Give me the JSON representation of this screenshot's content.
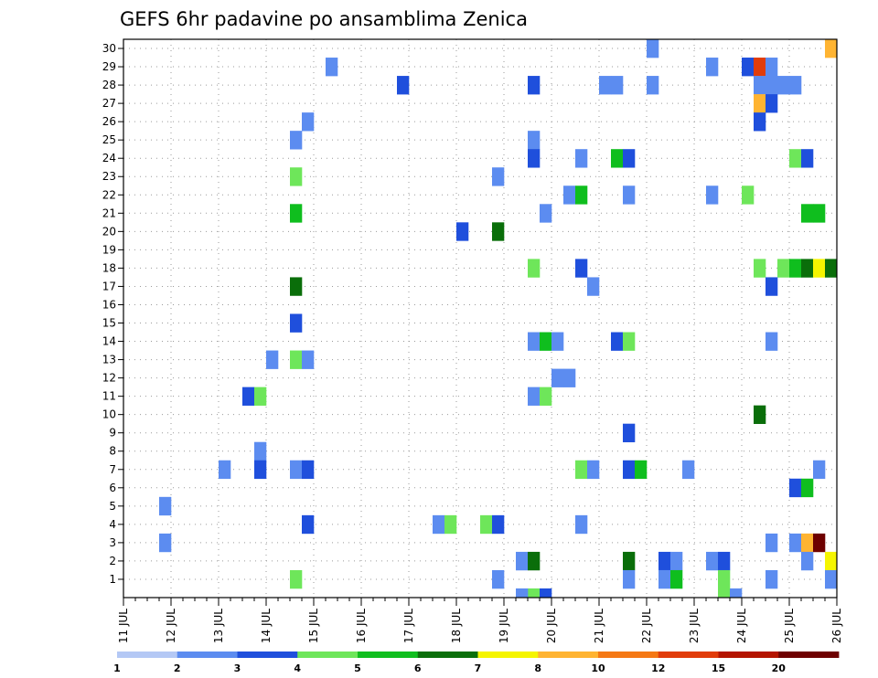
{
  "chart_data": {
    "type": "heatmap",
    "title": "GEFS 6hr padavine po ansamblima Zenica",
    "xlabel": "",
    "ylabel": "",
    "x_ticks": [
      "11 JUL",
      "12 JUL",
      "13 JUL",
      "14 JUL",
      "15 JUL",
      "16 JUL",
      "17 JUL",
      "18 JUL",
      "19 JUL",
      "20 JUL",
      "21 JUL",
      "22 JUL",
      "23 JUL",
      "24 JUL",
      "25 JUL",
      "26 JUL"
    ],
    "y_ticks": [
      "1",
      "2",
      "3",
      "4",
      "5",
      "6",
      "7",
      "8",
      "9",
      "10",
      "11",
      "12",
      "13",
      "14",
      "15",
      "16",
      "17",
      "18",
      "19",
      "20",
      "21",
      "22",
      "23",
      "24",
      "25",
      "26",
      "27",
      "28",
      "29",
      "30"
    ],
    "x_unit": "6-hour steps after 11 JUL 00Z",
    "xlim": [
      0,
      60
    ],
    "ylim": [
      0,
      30
    ],
    "grid": true,
    "legend": {
      "placement": "bottom",
      "labels": [
        "1",
        "2",
        "3",
        "4",
        "5",
        "6",
        "7",
        "8",
        "10",
        "12",
        "15",
        "20"
      ],
      "colors": [
        "#b4c8f5",
        "#5c8cf0",
        "#1f4fdc",
        "#6ee65a",
        "#0fbe1e",
        "#0a6e0a",
        "#f5f500",
        "#ffb432",
        "#f57814",
        "#e13c0a",
        "#b41400",
        "#6e0000"
      ]
    },
    "cells": [
      [
        44,
        30,
        1
      ],
      [
        59,
        30,
        7
      ],
      [
        17,
        29,
        1
      ],
      [
        49,
        29,
        1
      ],
      [
        52,
        29,
        2
      ],
      [
        53,
        29,
        9
      ],
      [
        54,
        29,
        1
      ],
      [
        23,
        28,
        2
      ],
      [
        34,
        28,
        2
      ],
      [
        44,
        28,
        1
      ],
      [
        54,
        28,
        1
      ],
      [
        53,
        28,
        1
      ],
      [
        40,
        28,
        1
      ],
      [
        41,
        28,
        1
      ],
      [
        54,
        28,
        1
      ],
      [
        55,
        28,
        1
      ],
      [
        56,
        28,
        1
      ],
      [
        53,
        27,
        7
      ],
      [
        54,
        27,
        2
      ],
      [
        15,
        26,
        1
      ],
      [
        53,
        26,
        2
      ],
      [
        14,
        25,
        1
      ],
      [
        34,
        25,
        1
      ],
      [
        34,
        24,
        2
      ],
      [
        38,
        24,
        1
      ],
      [
        41,
        24,
        4
      ],
      [
        42,
        24,
        2
      ],
      [
        56,
        24,
        3
      ],
      [
        57,
        24,
        2
      ],
      [
        14,
        23,
        3
      ],
      [
        31,
        23,
        1
      ],
      [
        37,
        22,
        1
      ],
      [
        38,
        22,
        4
      ],
      [
        42,
        22,
        1
      ],
      [
        49,
        22,
        1
      ],
      [
        52,
        22,
        3
      ],
      [
        14,
        21,
        4
      ],
      [
        35,
        21,
        1
      ],
      [
        57,
        21,
        4
      ],
      [
        58,
        21,
        4
      ],
      [
        28,
        20,
        2
      ],
      [
        31,
        20,
        5
      ],
      [
        34,
        18,
        3
      ],
      [
        38,
        18,
        2
      ],
      [
        53,
        18,
        3
      ],
      [
        55,
        18,
        3
      ],
      [
        56,
        18,
        4
      ],
      [
        57,
        18,
        5
      ],
      [
        58,
        18,
        6
      ],
      [
        59,
        18,
        5
      ],
      [
        60,
        18,
        10
      ],
      [
        61,
        18,
        3
      ],
      [
        62,
        18,
        5
      ],
      [
        63,
        18,
        2
      ],
      [
        14,
        17,
        5
      ],
      [
        39,
        17,
        1
      ],
      [
        54,
        17,
        2
      ],
      [
        14,
        15,
        2
      ],
      [
        34,
        14,
        1
      ],
      [
        35,
        14,
        4
      ],
      [
        36,
        14,
        1
      ],
      [
        41,
        14,
        2
      ],
      [
        42,
        14,
        3
      ],
      [
        54,
        14,
        1
      ],
      [
        12,
        13,
        1
      ],
      [
        14,
        13,
        3
      ],
      [
        15,
        13,
        1
      ],
      [
        36,
        12,
        1
      ],
      [
        37,
        12,
        1
      ],
      [
        10,
        11,
        2
      ],
      [
        11,
        11,
        3
      ],
      [
        34,
        11,
        1
      ],
      [
        35,
        11,
        3
      ],
      [
        53,
        10,
        5
      ],
      [
        42,
        9,
        2
      ],
      [
        11,
        8,
        1
      ],
      [
        8,
        7,
        1
      ],
      [
        11,
        7,
        2
      ],
      [
        14,
        7,
        1
      ],
      [
        15,
        7,
        2
      ],
      [
        38,
        7,
        3
      ],
      [
        39,
        7,
        1
      ],
      [
        42,
        7,
        2
      ],
      [
        43,
        7,
        4
      ],
      [
        47,
        7,
        1
      ],
      [
        58,
        7,
        1
      ],
      [
        56,
        6,
        2
      ],
      [
        57,
        6,
        4
      ],
      [
        3,
        5,
        1
      ],
      [
        15,
        4,
        2
      ],
      [
        26,
        4,
        1
      ],
      [
        27,
        4,
        3
      ],
      [
        30,
        4,
        3
      ],
      [
        31,
        4,
        2
      ],
      [
        38,
        4,
        1
      ],
      [
        3,
        3,
        1
      ],
      [
        54,
        3,
        1
      ],
      [
        56,
        3,
        1
      ],
      [
        57,
        3,
        7
      ],
      [
        58,
        3,
        11
      ],
      [
        33,
        2,
        1
      ],
      [
        34,
        2,
        5
      ],
      [
        42,
        2,
        5
      ],
      [
        45,
        2,
        2
      ],
      [
        46,
        2,
        1
      ],
      [
        49,
        2,
        1
      ],
      [
        50,
        2,
        2
      ],
      [
        57,
        2,
        1
      ],
      [
        59,
        2,
        6
      ],
      [
        60,
        2,
        5
      ],
      [
        14,
        1,
        3
      ],
      [
        31,
        1,
        1
      ],
      [
        42,
        1,
        1
      ],
      [
        45,
        1,
        1
      ],
      [
        46,
        1,
        4
      ],
      [
        50,
        1,
        3
      ],
      [
        54,
        1,
        1
      ],
      [
        59,
        1,
        1
      ],
      [
        60,
        1,
        2
      ],
      [
        34,
        0,
        3
      ],
      [
        35,
        0,
        2
      ],
      [
        33,
        0,
        1
      ],
      [
        50,
        0,
        3
      ],
      [
        51,
        0,
        1
      ]
    ]
  }
}
